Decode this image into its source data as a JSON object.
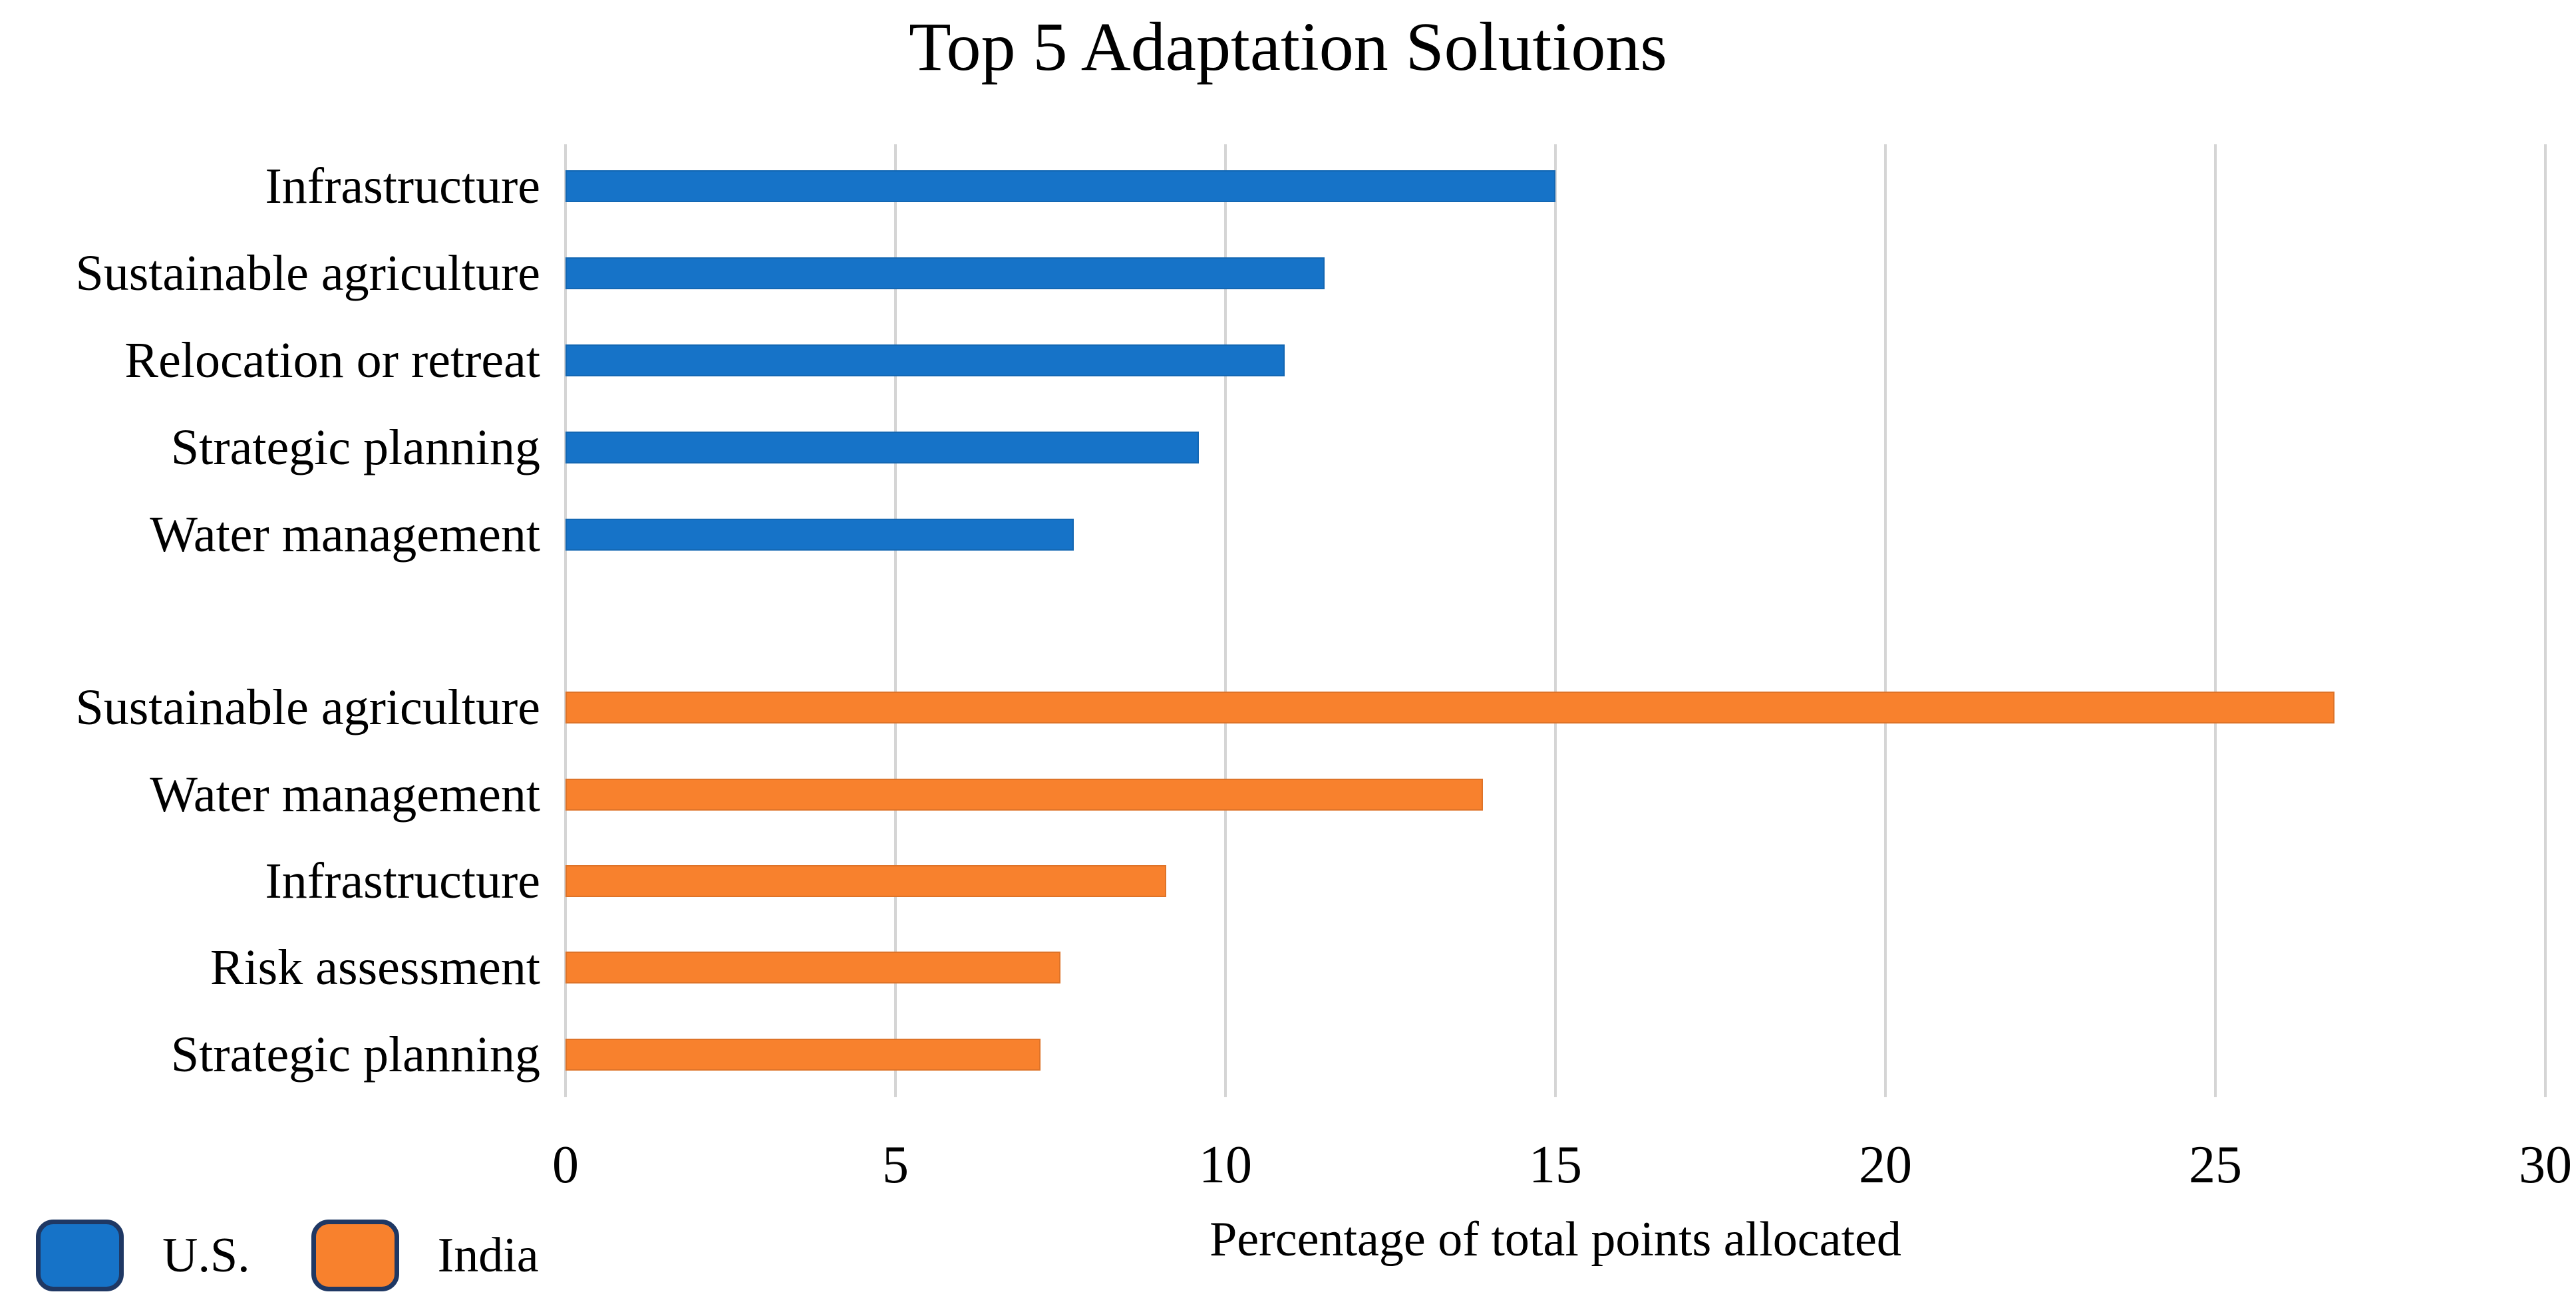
{
  "title": "Top 5 Adaptation Solutions",
  "x_axis": {
    "label": "Percentage of total points allocated",
    "ticks": [
      0,
      5,
      10,
      15,
      20,
      25,
      30
    ],
    "min": 0,
    "max": 30
  },
  "legend": [
    {
      "name": "U.S.",
      "color": "#1673C8"
    },
    {
      "name": "India",
      "color": "#F8812D"
    }
  ],
  "colors": {
    "us_bar": "#1673C8",
    "india_bar": "#F8812D",
    "legend_swatch_border": "#1F3864",
    "gridline": "#D5D5D5",
    "text": "#000000"
  },
  "chart_data": {
    "type": "bar",
    "orientation": "horizontal",
    "title": "Top 5 Adaptation Solutions",
    "xlabel": "Percentage of total points allocated",
    "xlim": [
      0,
      30
    ],
    "grid": true,
    "legend_position": "bottom-left",
    "series": [
      {
        "name": "U.S.",
        "color": "#1673C8",
        "categories": [
          "Infrastructure",
          "Sustainable agriculture",
          "Relocation or retreat",
          "Strategic planning",
          "Water management"
        ],
        "values": [
          15.0,
          11.5,
          10.9,
          9.6,
          7.7
        ]
      },
      {
        "name": "India",
        "color": "#F8812D",
        "categories": [
          "Sustainable agriculture",
          "Water management",
          "Infrastructure",
          "Risk assessment",
          "Strategic planning"
        ],
        "values": [
          26.8,
          13.9,
          9.1,
          7.5,
          7.2
        ]
      }
    ]
  }
}
